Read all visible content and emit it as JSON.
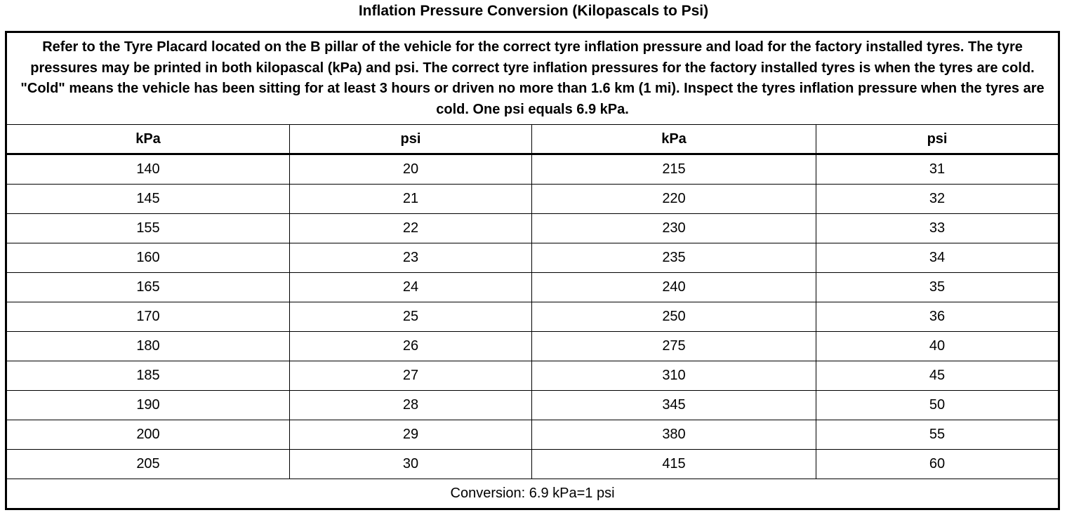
{
  "title": "Inflation Pressure Conversion (Kilopascals to Psi)",
  "intro": "Refer to the Tyre Placard located on the B pillar of the vehicle for the correct tyre inflation pressure and load for the factory installed tyres. The tyre pressures may be printed in both kilopascal (kPa) and psi. The correct tyre inflation pressures for the factory installed tyres is when the tyres are cold. \"Cold\" means the vehicle has been sitting for at least 3 hours or driven no more than 1.6 km (1 mi). Inspect the tyres inflation pressure when the tyres are cold. One psi equals 6.9 kPa.",
  "headers": [
    "kPa",
    "psi",
    "kPa",
    "psi"
  ],
  "rows": [
    [
      "140",
      "20",
      "215",
      "31"
    ],
    [
      "145",
      "21",
      "220",
      "32"
    ],
    [
      "155",
      "22",
      "230",
      "33"
    ],
    [
      "160",
      "23",
      "235",
      "34"
    ],
    [
      "165",
      "24",
      "240",
      "35"
    ],
    [
      "170",
      "25",
      "250",
      "36"
    ],
    [
      "180",
      "26",
      "275",
      "40"
    ],
    [
      "185",
      "27",
      "310",
      "45"
    ],
    [
      "190",
      "28",
      "345",
      "50"
    ],
    [
      "200",
      "29",
      "380",
      "55"
    ],
    [
      "205",
      "30",
      "415",
      "60"
    ]
  ],
  "footer": "Conversion: 6.9 kPa=1 psi"
}
